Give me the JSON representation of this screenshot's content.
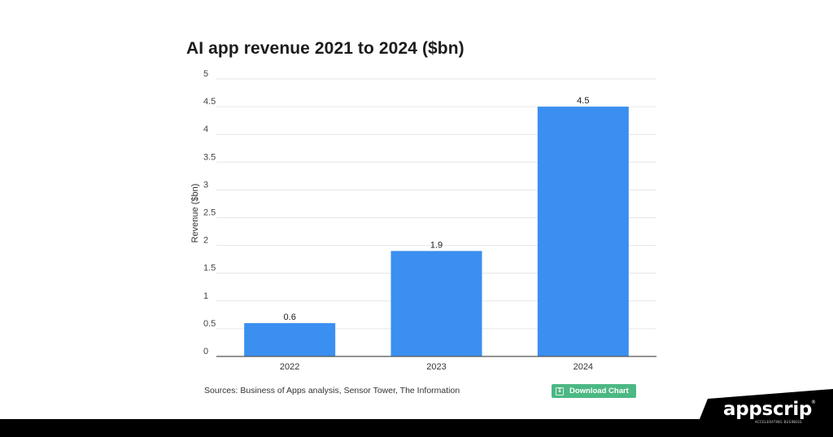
{
  "chart_data": {
    "type": "bar",
    "title": "AI app revenue 2021 to 2024 ($bn)",
    "xlabel": "",
    "ylabel": "Revenue ($bn)",
    "categories": [
      "2022",
      "2023",
      "2024"
    ],
    "values": [
      0.6,
      1.9,
      4.5
    ],
    "value_labels": [
      "0.6",
      "1.9",
      "4.5"
    ],
    "ylim": [
      0,
      5
    ],
    "yticks": [
      0,
      0.5,
      1,
      1.5,
      2,
      2.5,
      3,
      3.5,
      4,
      4.5,
      5
    ],
    "ytick_labels": [
      "0",
      "0.5",
      "1",
      "1.5",
      "2",
      "2.5",
      "3",
      "3.5",
      "4",
      "4.5",
      "5"
    ],
    "grid": true,
    "bar_color": "#3a8ff0"
  },
  "sources_text": "Sources: Business of Apps analysis, Sensor Tower, The Information",
  "download_button": {
    "label": "Download Chart",
    "icon": "download-icon"
  },
  "brand": {
    "name": "appscrip",
    "tagline": "ACCELERATING BUSINESS",
    "registered": "®"
  },
  "colors": {
    "footer": "#000000",
    "button": "#4cb884"
  }
}
